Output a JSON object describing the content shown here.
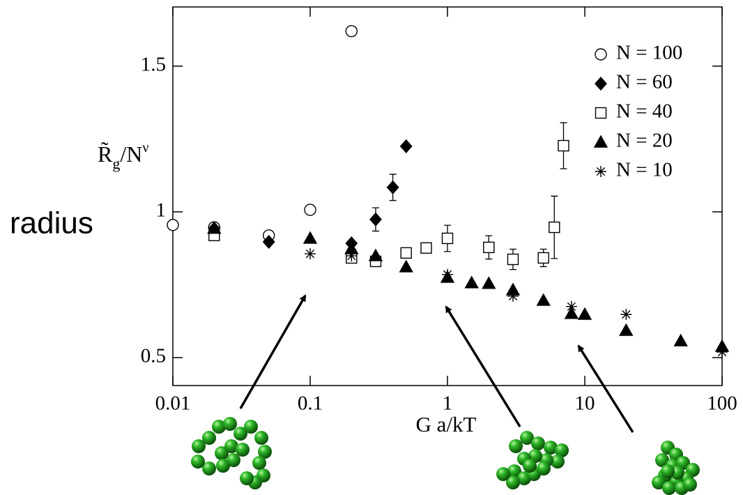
{
  "chart_data": {
    "type": "scatter",
    "xlabel": "G a/kT",
    "ylabel": {
      "base": "R̃",
      "sub": "g",
      "mid": "/N",
      "sup": "ν"
    },
    "annotation": "radius",
    "xscale": "log",
    "xlim": [
      0.01,
      100
    ],
    "xticks": [
      0.01,
      0.1,
      1,
      10,
      100
    ],
    "ylim": [
      0.404,
      1.703
    ],
    "yticks": [
      0.5,
      1,
      1.5
    ],
    "legend": "upper right",
    "series": [
      {
        "name": "N = 100",
        "marker": "circle",
        "filled": false,
        "color": "#000000",
        "x": [
          0.01,
          0.02,
          0.05,
          0.1,
          0.2
        ],
        "values": [
          0.955,
          0.947,
          0.919,
          1.007,
          1.62
        ]
      },
      {
        "name": "N = 60",
        "marker": "diamond",
        "filled": true,
        "color": "#000000",
        "x": [
          0.02,
          0.05,
          0.2,
          0.3,
          0.4,
          0.5
        ],
        "values": [
          0.943,
          0.897,
          0.892,
          0.974,
          1.084,
          1.225
        ],
        "errors": [
          null,
          null,
          null,
          0.04,
          0.045,
          null
        ]
      },
      {
        "name": "N = 40",
        "marker": "square",
        "filled": false,
        "color": "#000000",
        "x": [
          0.02,
          0.2,
          0.3,
          0.5,
          0.7,
          1,
          2,
          3,
          5,
          6,
          7
        ],
        "values": [
          0.919,
          0.842,
          0.83,
          0.859,
          0.876,
          0.909,
          0.878,
          0.837,
          0.842,
          0.947,
          1.227
        ],
        "errors": [
          null,
          null,
          null,
          null,
          null,
          0.045,
          0.04,
          0.035,
          0.03,
          0.107,
          0.079
        ]
      },
      {
        "name": "N = 20",
        "marker": "triangle",
        "filled": true,
        "color": "#000000",
        "x": [
          0.02,
          0.1,
          0.2,
          0.3,
          0.5,
          1,
          1.5,
          2,
          3,
          5,
          8,
          10,
          20,
          50,
          100
        ],
        "values": [
          0.943,
          0.909,
          0.873,
          0.849,
          0.811,
          0.775,
          0.756,
          0.754,
          0.732,
          0.696,
          0.651,
          0.648,
          0.593,
          0.557,
          0.538
        ]
      },
      {
        "name": "N = 10",
        "marker": "star",
        "filled": false,
        "color": "#000000",
        "x": [
          0.1,
          0.2,
          1,
          3,
          8,
          20,
          100
        ],
        "values": [
          0.856,
          0.849,
          0.785,
          0.711,
          0.675,
          0.648,
          0.519
        ]
      }
    ]
  }
}
